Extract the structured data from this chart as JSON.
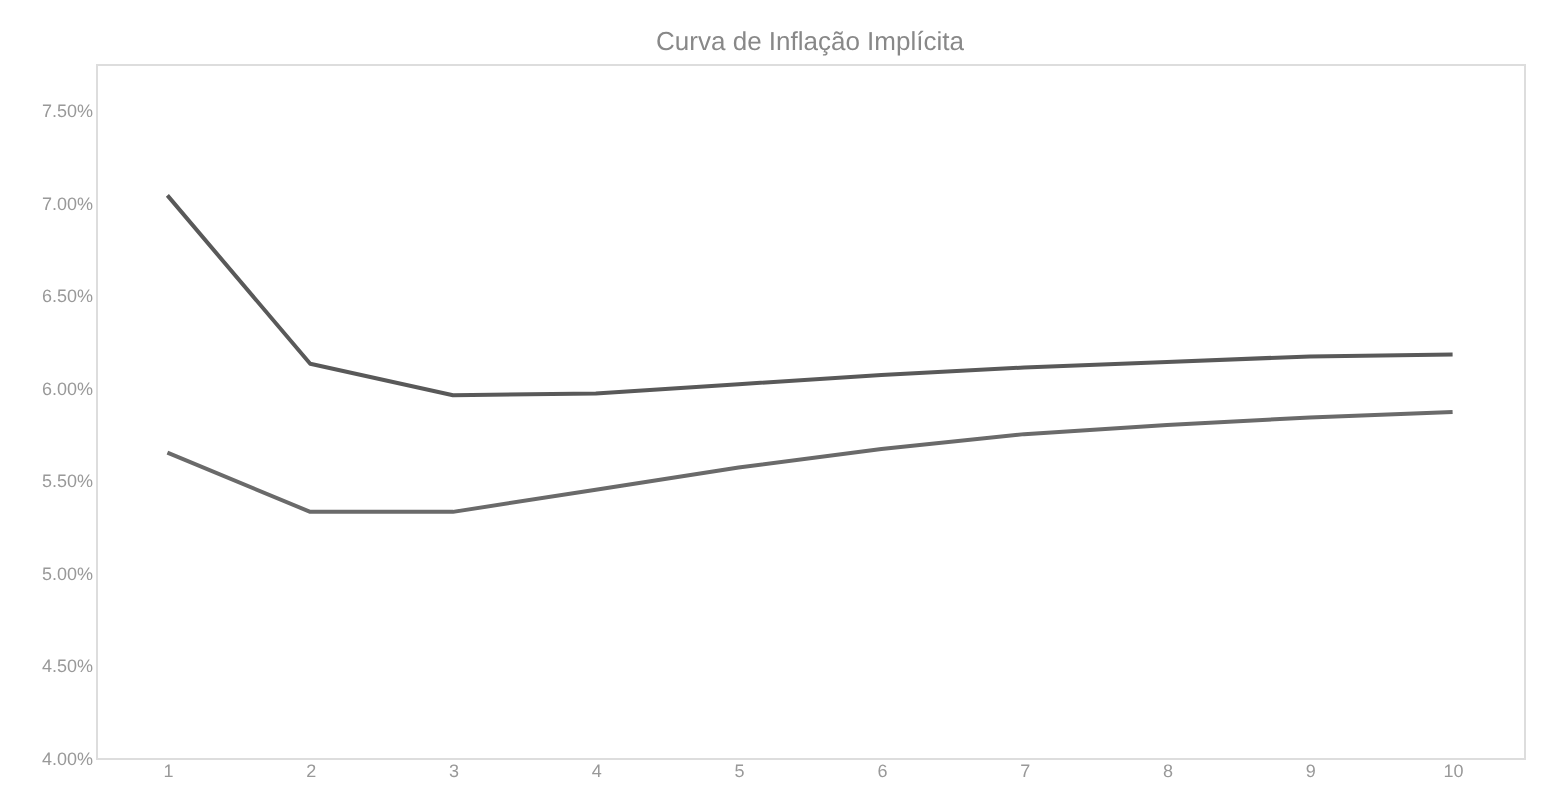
{
  "chart_data": {
    "type": "line",
    "title": "Curva de Inflação Implícita",
    "categories": [
      "1",
      "2",
      "3",
      "4",
      "5",
      "6",
      "7",
      "8",
      "9",
      "10"
    ],
    "series": [
      {
        "color": "#595959",
        "values": [
          7.04,
          6.13,
          5.96,
          5.97,
          6.02,
          6.07,
          6.11,
          6.14,
          6.17,
          6.18
        ]
      },
      {
        "color": "#6a6a6a",
        "values": [
          5.65,
          5.33,
          5.33,
          5.45,
          5.57,
          5.67,
          5.75,
          5.8,
          5.84,
          5.87
        ]
      }
    ],
    "ylim": [
      4.0,
      7.75
    ],
    "yticks": [
      {
        "value": 4.0,
        "label": "4.00%"
      },
      {
        "value": 4.5,
        "label": "4.50%"
      },
      {
        "value": 5.0,
        "label": "5.00%"
      },
      {
        "value": 5.5,
        "label": "5.50%"
      },
      {
        "value": 6.0,
        "label": "6.00%"
      },
      {
        "value": 6.5,
        "label": "6.50%"
      },
      {
        "value": 7.0,
        "label": "7.00%"
      },
      {
        "value": 7.5,
        "label": "7.50%"
      }
    ],
    "grid": false,
    "legend": false,
    "marker": "none",
    "line_style": "solid"
  }
}
